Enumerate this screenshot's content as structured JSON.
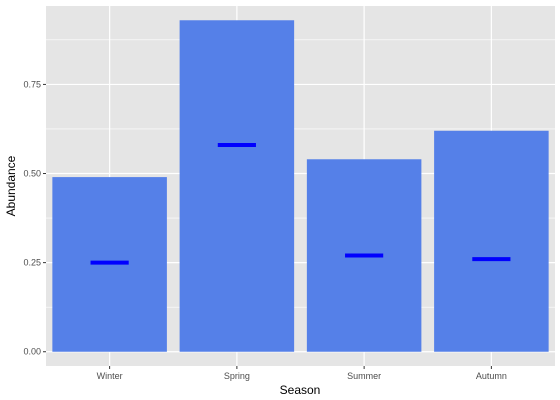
{
  "chart_data": {
    "type": "bar",
    "categories": [
      "Winter",
      "Spring",
      "Summer",
      "Autumn"
    ],
    "series": [
      {
        "values": [
          0.49,
          0.93,
          0.54,
          0.62
        ],
        "color": "#5580E8"
      },
      {
        "values": [
          0.25,
          0.58,
          0.27,
          0.26
        ],
        "color": "#0000FF",
        "style": "horizontal-line"
      }
    ],
    "xlabel": "Season",
    "ylabel": "Abundance",
    "ylim": [
      -0.04,
      0.97
    ],
    "yticks": [
      0.0,
      0.25,
      0.5,
      0.75
    ],
    "ytick_labels": [
      "0.00",
      "0.25",
      "0.50",
      "0.75"
    ],
    "grid": true,
    "panel_background": "#E5E5E5",
    "gridline_color": "#FFFFFF"
  }
}
